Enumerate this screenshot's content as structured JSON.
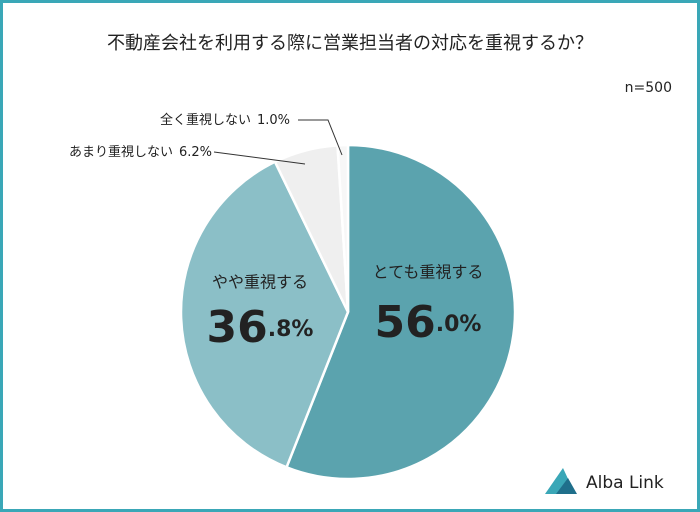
{
  "chart_data": {
    "type": "pie",
    "title": "不動産会社を利用する際に営業担当者の対応を重視するか？",
    "note": "n=500",
    "categories": [
      "とても重視する",
      "やや重視する",
      "あまり重視しない",
      "全く重視しない"
    ],
    "values": [
      56.0,
      36.8,
      6.2,
      1.0
    ],
    "value_labels": [
      "56.0%",
      "36.8%",
      "6.2%",
      "1.0%"
    ],
    "colors": [
      "#5ba3ae",
      "#8bbfc7",
      "#efefef",
      "#f7f7f7"
    ]
  },
  "logo": "Alba Link"
}
